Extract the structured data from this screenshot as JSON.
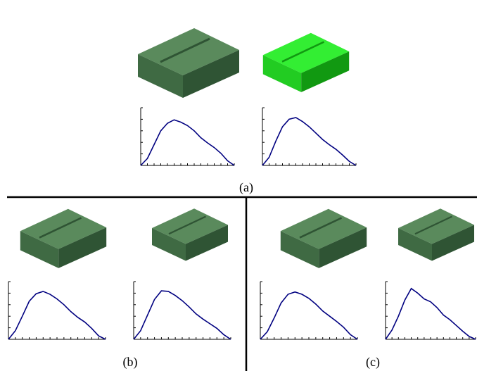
{
  "figure": {
    "captions": [
      "(a)",
      "(b)",
      "(c)"
    ]
  },
  "chart_data": [
    {
      "type": "line",
      "x": [
        0,
        1,
        2,
        3,
        4,
        5,
        6,
        7,
        8,
        9,
        10,
        11,
        12,
        13,
        14
      ],
      "values": [
        0,
        0.12,
        0.36,
        0.6,
        0.73,
        0.79,
        0.75,
        0.69,
        0.6,
        0.48,
        0.39,
        0.31,
        0.21,
        0.08,
        0
      ],
      "xlim": [
        0,
        14
      ],
      "ylim": [
        0,
        1
      ],
      "xticks": [
        0,
        1,
        2,
        3,
        4,
        5,
        6,
        7,
        8,
        9,
        10,
        11,
        12,
        13,
        14
      ],
      "yticks": [
        0,
        0.2,
        0.4,
        0.6,
        0.8,
        1
      ],
      "color": "#000080"
    },
    {
      "type": "line",
      "x": [
        0,
        1,
        2,
        3,
        4,
        5,
        6,
        7,
        8,
        9,
        10,
        11,
        12,
        13,
        14
      ],
      "values": [
        0,
        0.14,
        0.42,
        0.67,
        0.8,
        0.83,
        0.76,
        0.67,
        0.56,
        0.45,
        0.36,
        0.28,
        0.18,
        0.07,
        0
      ],
      "xlim": [
        0,
        14
      ],
      "ylim": [
        0,
        1
      ],
      "xticks": [
        0,
        1,
        2,
        3,
        4,
        5,
        6,
        7,
        8,
        9,
        10,
        11,
        12,
        13,
        14
      ],
      "yticks": [
        0,
        0.2,
        0.4,
        0.6,
        0.8,
        1
      ],
      "color": "#000080"
    },
    {
      "type": "line",
      "x": [
        0,
        1,
        2,
        3,
        4,
        5,
        6,
        7,
        8,
        9,
        10,
        11,
        12,
        13,
        14
      ],
      "values": [
        0,
        0.15,
        0.4,
        0.66,
        0.79,
        0.83,
        0.78,
        0.7,
        0.6,
        0.48,
        0.38,
        0.3,
        0.19,
        0.06,
        0
      ],
      "xlim": [
        0,
        14
      ],
      "ylim": [
        0,
        1
      ],
      "xticks": [
        0,
        1,
        2,
        3,
        4,
        5,
        6,
        7,
        8,
        9,
        10,
        11,
        12,
        13,
        14
      ],
      "yticks": [
        0,
        0.2,
        0.4,
        0.6,
        0.8,
        1
      ],
      "color": "#000080"
    },
    {
      "type": "line",
      "x": [
        0,
        1,
        2,
        3,
        4,
        5,
        6,
        7,
        8,
        9,
        10,
        11,
        12,
        13,
        14
      ],
      "values": [
        0,
        0.15,
        0.42,
        0.69,
        0.84,
        0.83,
        0.76,
        0.67,
        0.56,
        0.44,
        0.35,
        0.27,
        0.19,
        0.08,
        0
      ],
      "xlim": [
        0,
        14
      ],
      "ylim": [
        0,
        1
      ],
      "xticks": [
        0,
        1,
        2,
        3,
        4,
        5,
        6,
        7,
        8,
        9,
        10,
        11,
        12,
        13,
        14
      ],
      "yticks": [
        0,
        0.2,
        0.4,
        0.6,
        0.8,
        1
      ],
      "color": "#000080"
    },
    {
      "type": "line",
      "x": [
        0,
        1,
        2,
        3,
        4,
        5,
        6,
        7,
        8,
        9,
        10,
        11,
        12,
        13,
        14
      ],
      "values": [
        0,
        0.13,
        0.37,
        0.63,
        0.78,
        0.82,
        0.78,
        0.71,
        0.61,
        0.49,
        0.4,
        0.31,
        0.21,
        0.08,
        0
      ],
      "xlim": [
        0,
        14
      ],
      "ylim": [
        0,
        1
      ],
      "xticks": [
        0,
        1,
        2,
        3,
        4,
        5,
        6,
        7,
        8,
        9,
        10,
        11,
        12,
        13,
        14
      ],
      "yticks": [
        0,
        0.2,
        0.4,
        0.6,
        0.8,
        1
      ],
      "color": "#000080"
    },
    {
      "type": "line",
      "x": [
        0,
        1,
        2,
        3,
        4,
        5,
        6,
        7,
        8,
        9,
        10,
        11,
        12,
        13,
        14
      ],
      "values": [
        0,
        0.16,
        0.4,
        0.68,
        0.88,
        0.8,
        0.7,
        0.65,
        0.55,
        0.42,
        0.34,
        0.24,
        0.14,
        0.05,
        0
      ],
      "xlim": [
        0,
        14
      ],
      "ylim": [
        0,
        1
      ],
      "xticks": [
        0,
        1,
        2,
        3,
        4,
        5,
        6,
        7,
        8,
        9,
        10,
        11,
        12,
        13,
        14
      ],
      "yticks": [
        0,
        0.2,
        0.4,
        0.6,
        0.8,
        1
      ],
      "color": "#000080"
    }
  ]
}
